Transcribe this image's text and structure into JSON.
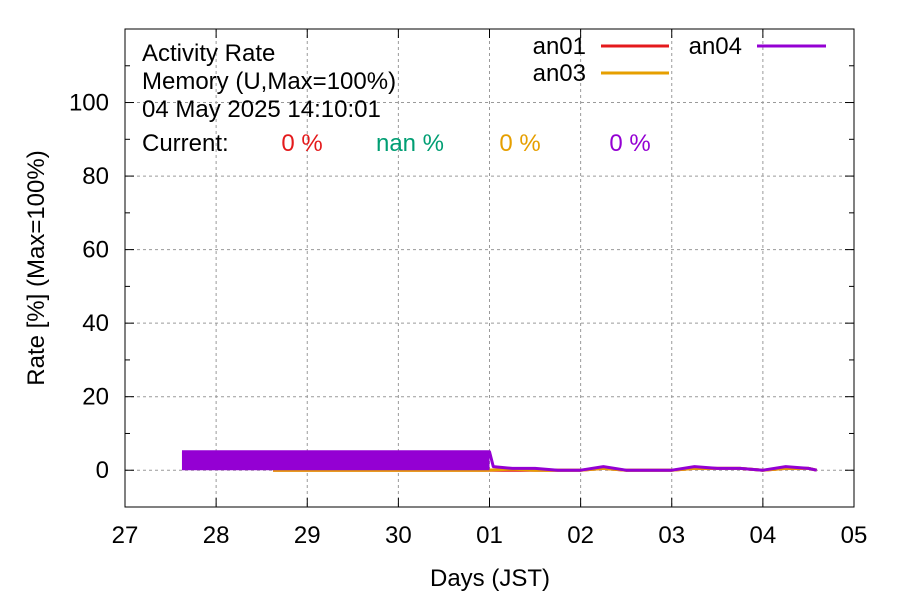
{
  "chart_data": {
    "type": "line",
    "title_lines": [
      "Activity Rate",
      "Memory (U,Max=100%)",
      "04 May 2025 14:10:01"
    ],
    "current_label": "Current:",
    "current_values": [
      {
        "text": "0 %",
        "color": "#e41a1c"
      },
      {
        "text": "nan %",
        "color": "#009e73"
      },
      {
        "text": "0 %",
        "color": "#e69f00"
      },
      {
        "text": "0 %",
        "color": "#9400d3"
      }
    ],
    "xlabel": "Days (JST)",
    "ylabel": "Rate [%]  (Max=100%)",
    "xlim": [
      "2025-04-27",
      "2025-05-05"
    ],
    "ylim": [
      -10,
      120
    ],
    "x_ticks": [
      "27",
      "28",
      "29",
      "30",
      "01",
      "02",
      "03",
      "04",
      "05"
    ],
    "y_ticks": [
      0,
      20,
      40,
      60,
      80,
      100
    ],
    "grid": true,
    "legend_position": "top-right",
    "series": [
      {
        "name": "an01",
        "color": "#e41a1c",
        "x": [
          "2025-04-28T15:00",
          "2025-04-30T23:00",
          "2025-05-01T06:00",
          "2025-05-01T12:00",
          "2025-05-02T00:00",
          "2025-05-02T06:00",
          "2025-05-02T12:00",
          "2025-05-03T00:00",
          "2025-05-03T06:00",
          "2025-05-03T12:00",
          "2025-05-03T18:00",
          "2025-05-04T00:00",
          "2025-05-04T06:00",
          "2025-05-04T12:00",
          "2025-05-04T14:10"
        ],
        "y": [
          0,
          0,
          0,
          0,
          0,
          0.5,
          0,
          0,
          0.5,
          0.5,
          0.5,
          0,
          0.5,
          0.5,
          0
        ]
      },
      {
        "name": "an03",
        "color": "#e69f00",
        "x": [
          "2025-04-28T15:00",
          "2025-04-30T23:00",
          "2025-05-01T06:00",
          "2025-05-01T12:00",
          "2025-05-02T00:00",
          "2025-05-02T06:00",
          "2025-05-02T12:00",
          "2025-05-03T00:00",
          "2025-05-03T06:00",
          "2025-05-03T12:00",
          "2025-05-03T18:00",
          "2025-05-04T00:00",
          "2025-05-04T06:00",
          "2025-05-04T12:00",
          "2025-05-04T14:10"
        ],
        "y": [
          0,
          0,
          0.3,
          0,
          0,
          0.5,
          0,
          0,
          0.5,
          0.5,
          0.5,
          0,
          0.5,
          0.5,
          0
        ]
      },
      {
        "name": "an04",
        "color": "#9400d3",
        "x": [
          "2025-04-27T15:00",
          "2025-04-28T12:00",
          "2025-04-28T18:00",
          "2025-04-29T06:00",
          "2025-04-29T12:00",
          "2025-04-29T18:00",
          "2025-04-30T06:00",
          "2025-04-30T12:00",
          "2025-05-01T00:00",
          "2025-05-01T01:00",
          "2025-05-01T06:00",
          "2025-05-01T12:00",
          "2025-05-01T18:00",
          "2025-05-02T00:00",
          "2025-05-02T06:00",
          "2025-05-02T12:00",
          "2025-05-02T18:00",
          "2025-05-03T00:00",
          "2025-05-03T06:00",
          "2025-05-03T12:00",
          "2025-05-03T18:00",
          "2025-05-04T00:00",
          "2025-05-04T06:00",
          "2025-05-04T12:00",
          "2025-05-04T14:10"
        ],
        "y": [
          5,
          5,
          5,
          5,
          5,
          5,
          5,
          5,
          5,
          1,
          0.5,
          0.5,
          0,
          0,
          1,
          0,
          0,
          0,
          1,
          0.5,
          0.5,
          0,
          1,
          0.5,
          0
        ]
      }
    ]
  }
}
